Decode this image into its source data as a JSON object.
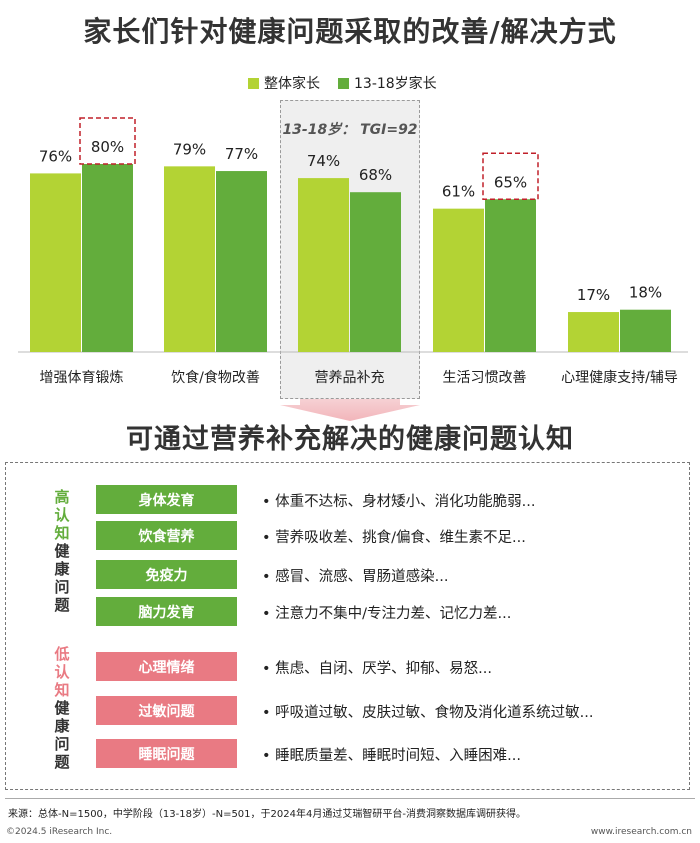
{
  "title": "家长们针对健康问题采取的改善/解决方式",
  "subtitle": "可通过营养补充解决的健康问题认知",
  "highlight_note": "13-18岁： TGI=92",
  "colors": {
    "overall": "#b3d334",
    "teen": "#63ad3c",
    "high_tag": "#63ad3c",
    "low_tag": "#e97a83",
    "dashed_red": "#c0202a"
  },
  "chart_data": {
    "type": "bar",
    "categories": [
      "增强体育锻炼",
      "饮食/食物改善",
      "营养品补充",
      "生活习惯改善",
      "心理健康支持/辅导"
    ],
    "series": [
      {
        "name": "整体家长",
        "values": [
          76,
          79,
          74,
          61,
          17
        ]
      },
      {
        "name": "13-18岁家长",
        "values": [
          80,
          77,
          68,
          65,
          18
        ]
      }
    ],
    "value_labels": {
      "整体家长": [
        "76%",
        "79%",
        "74%",
        "61%",
        "17%"
      ],
      "13-18岁家长": [
        "80%",
        "77%",
        "68%",
        "65%",
        "18%"
      ]
    },
    "ylim": [
      0,
      100
    ],
    "legend_position": "top-center",
    "grid": false,
    "highlighted_category": "营养品补充",
    "emphasized_labels": [
      {
        "series": "13-18岁家长",
        "category": "增强体育锻炼"
      },
      {
        "series": "13-18岁家长",
        "category": "生活习惯改善"
      }
    ]
  },
  "perception": {
    "high_label": [
      "高",
      "认",
      "知",
      "健",
      "康",
      "问",
      "题"
    ],
    "low_label": [
      "低",
      "认",
      "知",
      "健",
      "康",
      "问",
      "题"
    ],
    "high": [
      {
        "tag": "身体发育",
        "desc": "• 体重不达标、身材矮小、消化功能脆弱..."
      },
      {
        "tag": "饮食营养",
        "desc": "• 营养吸收差、挑食/偏食、维生素不足..."
      },
      {
        "tag": "免疫力",
        "desc": "• 感冒、流感、胃肠道感染..."
      },
      {
        "tag": "脑力发育",
        "desc": "• 注意力不集中/专注力差、记忆力差..."
      }
    ],
    "low": [
      {
        "tag": "心理情绪",
        "desc": "• 焦虑、自闭、厌学、抑郁、易怒..."
      },
      {
        "tag": "过敏问题",
        "desc": "• 呼吸道过敏、皮肤过敏、食物及消化道系统过敏..."
      },
      {
        "tag": "睡眠问题",
        "desc": "• 睡眠质量差、睡眠时间短、入睡困难..."
      }
    ]
  },
  "footer": {
    "source": "来源：总体-N=1500，中学阶段（13-18岁）-N=501，于2024年4月通过艾瑞智研平台-消费洞察数据库调研获得。",
    "copyright": "©2024.5 iResearch Inc.",
    "website": "www.iresearch.com.cn"
  }
}
